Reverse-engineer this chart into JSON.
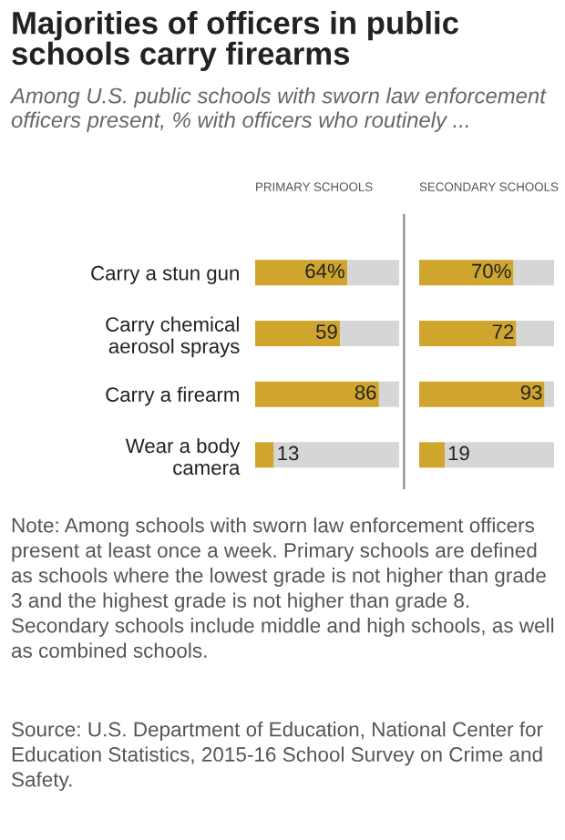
{
  "chart_data": [
    {
      "type": "other",
      "title": "Majorities of officers in public schools carry firearms",
      "subtitle": "Among U.S. public schools with sworn law enforcement officers present, % with officers who routinely ..."
    },
    {
      "type": "bar",
      "orientation": "horizontal",
      "stacked": true,
      "title": "PRIMARY SCHOOLS",
      "tick_labels": "y",
      "categories": [
        "Carry a stun gun",
        "Carry chemical aerosol sprays",
        "Carry a firearm",
        "Wear a body camera"
      ],
      "series": [
        {
          "color": "#cfa52e",
          "values": [
            64,
            59,
            86,
            13
          ],
          "value_labels": [
            "64%",
            "59",
            "86",
            "13"
          ]
        },
        {
          "color": "#d6d6d6",
          "values": [
            36,
            41,
            14,
            87
          ]
        }
      ]
    },
    {
      "type": "bar",
      "orientation": "horizontal",
      "stacked": true,
      "title": "SECONDARY SCHOOLS",
      "tick_labels": false,
      "categories": [
        null,
        null,
        null,
        null
      ],
      "series": [
        {
          "color": "#cfa52e",
          "values": [
            70,
            72,
            93,
            19
          ],
          "value_labels": [
            "70%",
            "72",
            "93",
            "19"
          ]
        },
        {
          "color": "#d6d6d6",
          "values": [
            30,
            28,
            7,
            81
          ]
        }
      ]
    },
    {
      "type": "other",
      "annotations": [
        "Note: Among schools with sworn law enforcement officers present at least once a week. Primary schools are defined as schools where the lowest grade is not higher than grade 3 and the highest grade is not higher than grade 8. Secondary schools include middle and high schools, as well as combined schools.",
        "Source: U.S. Department of Education, National Center for Education Statistics, 2015-16 School Survey on Crime and Safety."
      ]
    }
  ]
}
